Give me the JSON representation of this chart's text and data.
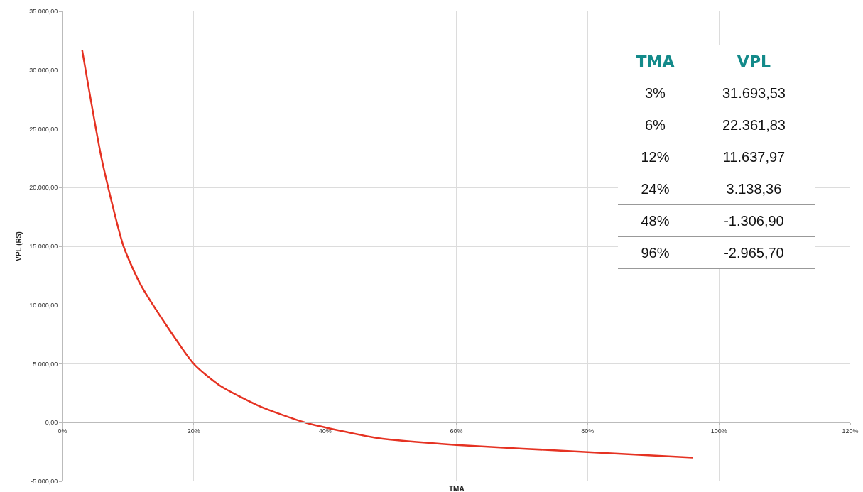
{
  "chart_data": [
    {
      "type": "line",
      "xlabel": "TMA",
      "ylabel": "VPL (R$)",
      "x": [
        3,
        6,
        9.3,
        12,
        20,
        24,
        30,
        37,
        48,
        60,
        80,
        96
      ],
      "series": [
        {
          "color": "#e53222",
          "values": [
            31700,
            22360,
            15000,
            11640,
            5000,
            3140,
            1400,
            0,
            -1310,
            -1900,
            -2500,
            -2970
          ]
        }
      ],
      "xlim": [
        0,
        120
      ],
      "xticks": [
        {
          "value": 0,
          "label": "0%"
        },
        {
          "value": 20,
          "label": "20%"
        },
        {
          "value": 40,
          "label": "40%"
        },
        {
          "value": 60,
          "label": "60%"
        },
        {
          "value": 80,
          "label": "80%"
        },
        {
          "value": 100,
          "label": "100%"
        },
        {
          "value": 120,
          "label": "120%"
        }
      ],
      "ylim": [
        -5000,
        35000
      ],
      "yticks": [
        {
          "value": -5000,
          "label": "-5.000,00"
        },
        {
          "value": 0,
          "label": "0,00"
        },
        {
          "value": 5000,
          "label": "5.000,00"
        },
        {
          "value": 10000,
          "label": "10.000,00"
        },
        {
          "value": 15000,
          "label": "15.000,00"
        },
        {
          "value": 20000,
          "label": "20.000,00"
        },
        {
          "value": 25000,
          "label": "25.000,00"
        },
        {
          "value": 30000,
          "label": "30.000,00"
        },
        {
          "value": 35000,
          "label": "35.000,00"
        }
      ],
      "grid": true,
      "marker": "none",
      "line_style": "solid"
    },
    {
      "type": "other",
      "annotations": [
        "TMA",
        "VPL",
        "3%",
        "31.693,53",
        "6%",
        "22.361,83",
        "12%",
        "11.637,97",
        "24%",
        "3.138,36",
        "48%",
        "-1.306,90",
        "96%",
        "-2.965,70"
      ]
    }
  ]
}
